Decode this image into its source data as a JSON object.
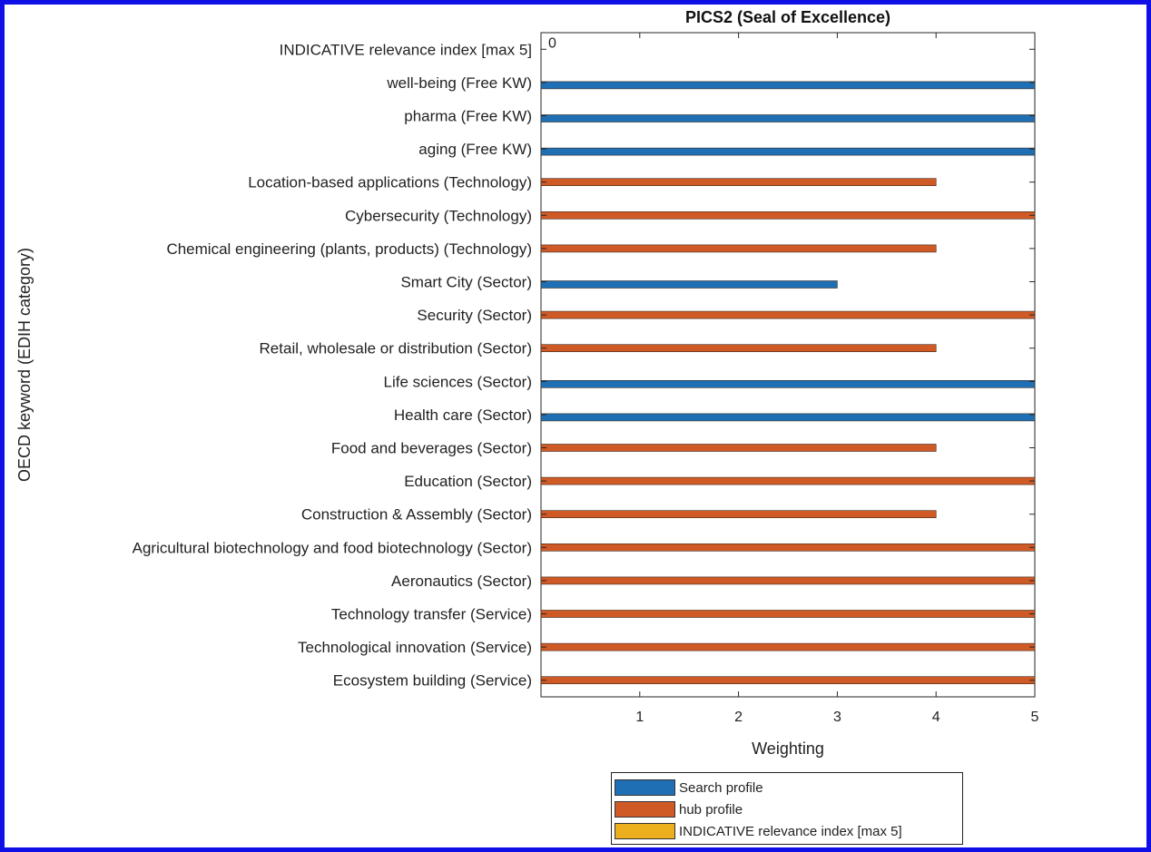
{
  "chart_data": {
    "type": "bar",
    "orientation": "horizontal",
    "title": "PICS2 (Seal of Excellence)",
    "xlabel": "Weighting",
    "ylabel": "OECD keyword (EDIH category)",
    "xlim": [
      0,
      5
    ],
    "xticks": [
      "1",
      "2",
      "3",
      "4",
      "5"
    ],
    "grid": false,
    "legend_position": "bottom",
    "colors": {
      "search": "#1f6fb4",
      "hub": "#d05a26",
      "index": "#ecb01f",
      "frame": "#1010e6"
    },
    "series": [
      {
        "name": "Search profile",
        "key": "search"
      },
      {
        "name": "hub profile",
        "key": "hub"
      },
      {
        "name": "INDICATIVE relevance index [max 5]",
        "key": "index"
      }
    ],
    "categories": [
      {
        "label": "INDICATIVE relevance index [max 5]",
        "series": "index",
        "value": 0,
        "annotation": "0"
      },
      {
        "label": "well-being (Free KW)",
        "series": "search",
        "value": 5
      },
      {
        "label": "pharma (Free KW)",
        "series": "search",
        "value": 5
      },
      {
        "label": "aging (Free KW)",
        "series": "search",
        "value": 5
      },
      {
        "label": "Location-based applications (Technology)",
        "series": "hub",
        "value": 4
      },
      {
        "label": "Cybersecurity (Technology)",
        "series": "hub",
        "value": 5
      },
      {
        "label": "Chemical engineering (plants, products) (Technology)",
        "series": "hub",
        "value": 4
      },
      {
        "label": "Smart City (Sector)",
        "series": "search",
        "value": 3
      },
      {
        "label": "Security (Sector)",
        "series": "hub",
        "value": 5
      },
      {
        "label": "Retail, wholesale or distribution (Sector)",
        "series": "hub",
        "value": 4
      },
      {
        "label": "Life sciences (Sector)",
        "series": "search",
        "value": 5
      },
      {
        "label": "Health care (Sector)",
        "series": "search",
        "value": 5
      },
      {
        "label": "Food and beverages (Sector)",
        "series": "hub",
        "value": 4
      },
      {
        "label": "Education (Sector)",
        "series": "hub",
        "value": 5
      },
      {
        "label": "Construction & Assembly (Sector)",
        "series": "hub",
        "value": 4
      },
      {
        "label": "Agricultural biotechnology and food biotechnology (Sector)",
        "series": "hub",
        "value": 5
      },
      {
        "label": "Aeronautics (Sector)",
        "series": "hub",
        "value": 5
      },
      {
        "label": "Technology transfer (Service)",
        "series": "hub",
        "value": 5
      },
      {
        "label": "Technological innovation (Service)",
        "series": "hub",
        "value": 5
      },
      {
        "label": "Ecosystem building (Service)",
        "series": "hub",
        "value": 5
      }
    ]
  }
}
